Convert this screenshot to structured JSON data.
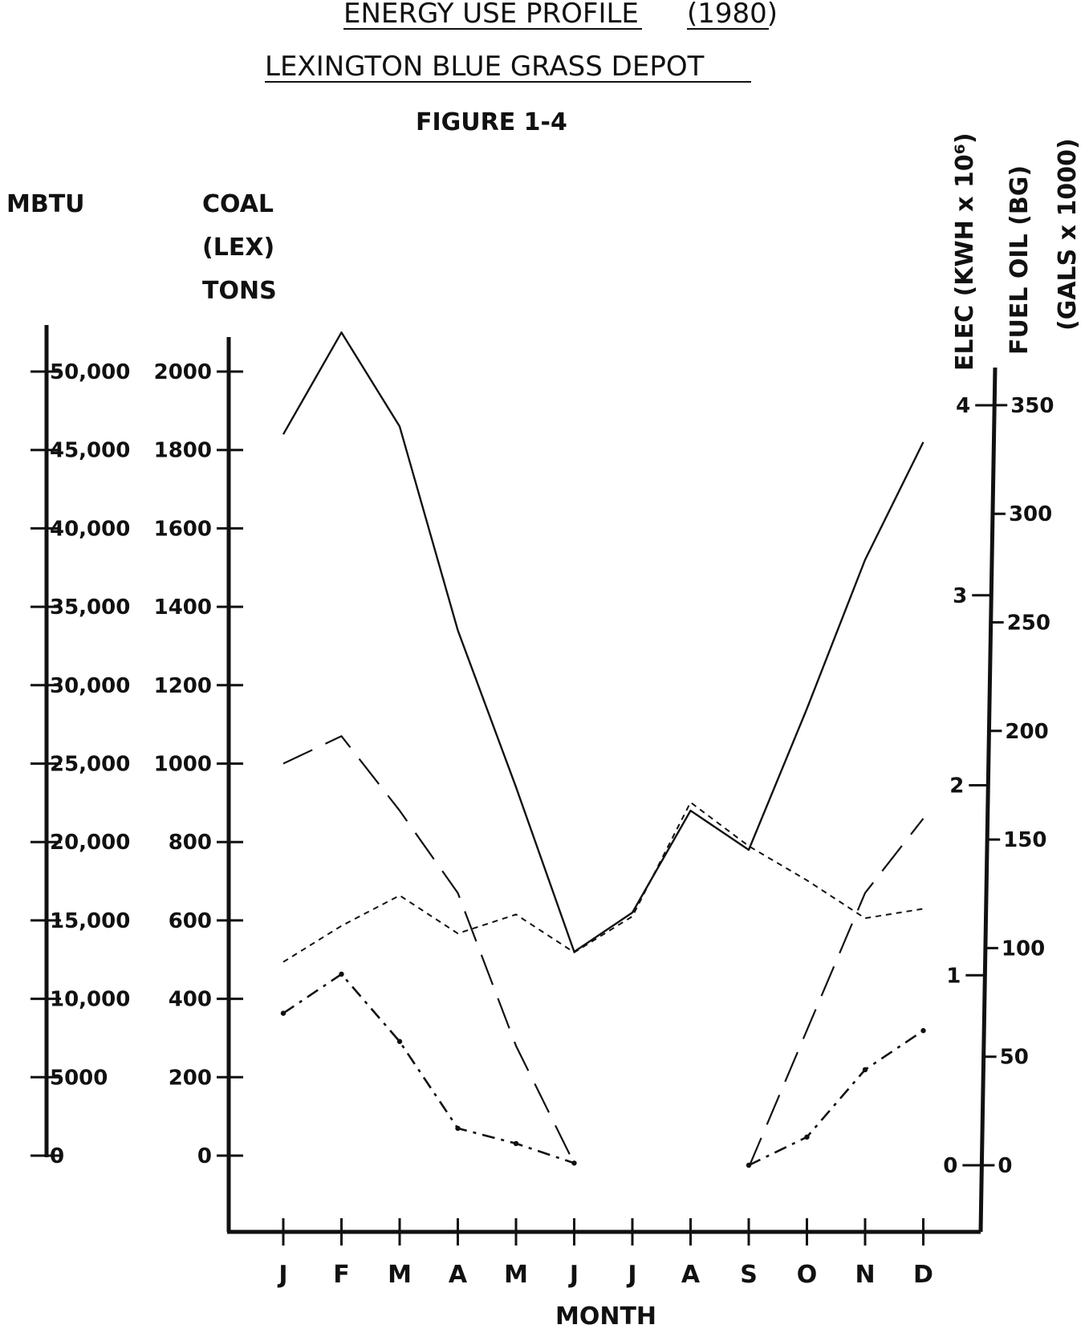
{
  "header": {
    "line1_left": "ENERGY USE PROFILE",
    "line1_right": "(1980)",
    "line2": "LEXINGTON BLUE GRASS DEPOT",
    "figure": "FIGURE 1-4"
  },
  "axes": {
    "mbtu_label": "MBTU",
    "coal_label_1": "COAL",
    "coal_label_2": "(LEX)",
    "coal_label_3": "TONS",
    "elec_label": "ELEC (KWH x 10⁶)",
    "fuel_label_1": "FUEL OIL (BG)",
    "fuel_label_2": "(GALS x 1000)",
    "x_label": "MONTH"
  },
  "chart_data": {
    "type": "line",
    "title": "ENERGY USE PROFILE (1980) LEXINGTON BLUE GRASS DEPOT",
    "xlabel": "MONTH",
    "categories": [
      "J",
      "F",
      "M",
      "A",
      "M",
      "J",
      "J",
      "A",
      "S",
      "O",
      "N",
      "D"
    ],
    "axes": {
      "mbtu": {
        "label": "MBTU",
        "range": [
          0,
          50000
        ],
        "ticks": [
          "0",
          "5000",
          "10,000",
          "15,000",
          "20,000",
          "25,000",
          "30,000",
          "35,000",
          "40,000",
          "45,000",
          "50,000"
        ]
      },
      "coal": {
        "label": "COAL (LEX) TONS",
        "range": [
          0,
          2000
        ],
        "ticks": [
          "0",
          "200",
          "400",
          "600",
          "800",
          "1000",
          "1200",
          "1400",
          "1600",
          "1800",
          "2000"
        ]
      },
      "elec": {
        "label": "ELEC (KWH x 10⁶)",
        "range": [
          0,
          4
        ],
        "ticks": [
          "0",
          "1",
          "2",
          "3",
          "4"
        ]
      },
      "fuel_oil": {
        "label": "FUEL OIL (BG) (GALS x 1000)",
        "range": [
          0,
          350
        ],
        "ticks": [
          "0",
          "50",
          "100",
          "150",
          "200",
          "250",
          "300",
          "350"
        ]
      }
    },
    "series": [
      {
        "style": "solid",
        "axis": "mbtu",
        "points": [
          {
            "x": "J",
            "y": 46000
          },
          {
            "x": "F",
            "y": 52500
          },
          {
            "x": "M",
            "y": 46500
          },
          {
            "x": "A",
            "y": 33500
          },
          {
            "x": "M",
            "y": 23500
          },
          {
            "x": "J",
            "y": 13000
          },
          {
            "x": "J",
            "y": 15500
          },
          {
            "x": "A",
            "y": 22000
          },
          {
            "x": "S",
            "y": 19500
          },
          {
            "x": "O",
            "y": 28500
          },
          {
            "x": "N",
            "y": 38000
          },
          {
            "x": "D",
            "y": 45500
          }
        ]
      },
      {
        "style": "long-dash",
        "axis": "coal",
        "points": [
          {
            "x": "J",
            "y": 1000
          },
          {
            "x": "F",
            "y": 1070
          },
          {
            "x": "M",
            "y": 880
          },
          {
            "x": "A",
            "y": 670
          },
          {
            "x": "M",
            "y": 280
          },
          {
            "x": "J",
            "y": -20
          },
          {
            "x": "S",
            "y": -30
          },
          {
            "x": "O",
            "y": 320
          },
          {
            "x": "N",
            "y": 670
          },
          {
            "x": "D",
            "y": 860
          }
        ]
      },
      {
        "style": "short-dash",
        "axis": "elec",
        "points": [
          {
            "x": "J",
            "y": 1.07
          },
          {
            "x": "F",
            "y": 1.26
          },
          {
            "x": "M",
            "y": 1.42
          },
          {
            "x": "A",
            "y": 1.22
          },
          {
            "x": "M",
            "y": 1.32
          },
          {
            "x": "J",
            "y": 1.12
          },
          {
            "x": "J",
            "y": 1.31
          },
          {
            "x": "A",
            "y": 1.91
          },
          {
            "x": "S",
            "y": 1.68
          },
          {
            "x": "O",
            "y": 1.5
          },
          {
            "x": "N",
            "y": 1.3
          },
          {
            "x": "D",
            "y": 1.35
          }
        ]
      },
      {
        "style": "dash-dot",
        "axis": "fuel_oil",
        "points": [
          {
            "x": "J",
            "y": 70
          },
          {
            "x": "F",
            "y": 88
          },
          {
            "x": "M",
            "y": 57
          },
          {
            "x": "A",
            "y": 17
          },
          {
            "x": "M",
            "y": 10
          },
          {
            "x": "J",
            "y": 1
          },
          {
            "x": "S",
            "y": 0
          },
          {
            "x": "O",
            "y": 13
          },
          {
            "x": "N",
            "y": 44
          },
          {
            "x": "D",
            "y": 62
          }
        ]
      }
    ],
    "grid": false,
    "legend": "none"
  },
  "colors": {
    "ink": "#111111",
    "paper": "#ffffff"
  }
}
